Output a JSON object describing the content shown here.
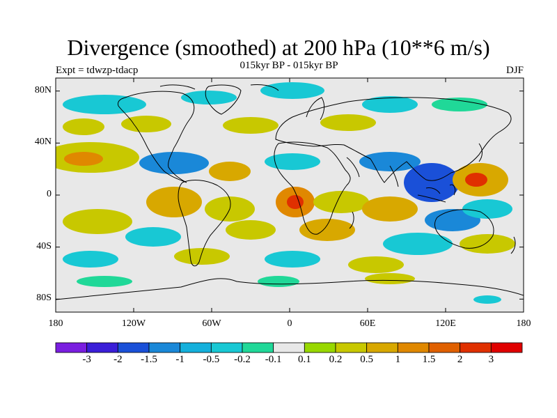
{
  "title": "Divergence (smoothed) at 200 hPa (10**6 m/s)",
  "subtitle": "015kyr BP - 015kyr BP",
  "experiment": "Expt = tdwzp-tdacp",
  "season": "DJF",
  "lat_labels": [
    "80N",
    "40N",
    "0",
    "40S",
    "80S"
  ],
  "lon_labels": [
    "180",
    "120W",
    "60W",
    "0",
    "60E",
    "120E",
    "180"
  ],
  "colorbar": {
    "labels": [
      "-3",
      "-2",
      "-1.5",
      "-1",
      "-0.5",
      "-0.2",
      "-0.1",
      "0.1",
      "0.2",
      "0.5",
      "1",
      "1.5",
      "2",
      "3"
    ],
    "colors": [
      "#7a1ee0",
      "#3a1ed8",
      "#1a50d8",
      "#1a88d8",
      "#14b0dc",
      "#18c8d4",
      "#20d898",
      "#e8e8e8",
      "#98d800",
      "#c8c800",
      "#d8a800",
      "#e08800",
      "#e06000",
      "#e03000",
      "#e00000"
    ]
  },
  "map_colors": {
    "ocean_zero": "#e8e8e8",
    "strong_neg": "#1a50d8",
    "neg": "#1a88d8",
    "light_neg": "#18c8d4",
    "weak_neg": "#20d898",
    "weak_pos": "#98d800",
    "pos": "#c8c800",
    "mid_pos": "#d8a800",
    "strong_pos": "#e08800",
    "very_pos": "#e03000"
  }
}
